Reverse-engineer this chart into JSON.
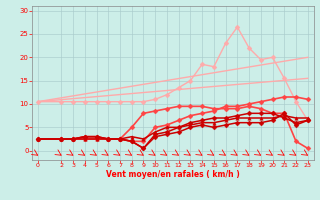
{
  "xlabel": "Vent moyen/en rafales ( km/h )",
  "background_color": "#cceee8",
  "grid_color": "#aacccc",
  "x_ticks": [
    0,
    2,
    3,
    4,
    5,
    6,
    7,
    8,
    9,
    10,
    11,
    12,
    13,
    14,
    15,
    16,
    17,
    18,
    19,
    20,
    21,
    22,
    23
  ],
  "xlim": [
    -0.5,
    23.5
  ],
  "ylim": [
    -2,
    31
  ],
  "y_ticks": [
    0,
    5,
    10,
    15,
    20,
    25,
    30
  ],
  "lines": [
    {
      "x": [
        0,
        23
      ],
      "y": [
        10.5,
        20.0
      ],
      "color": "#ffaaaa",
      "marker": null,
      "lw": 1.0
    },
    {
      "x": [
        0,
        23
      ],
      "y": [
        10.5,
        15.5
      ],
      "color": "#ffaaaa",
      "marker": null,
      "lw": 1.0
    },
    {
      "x": [
        0,
        2,
        3,
        4,
        5,
        6,
        7,
        8,
        9,
        10,
        11,
        12,
        13,
        14,
        15,
        16,
        17,
        18,
        19,
        20,
        21,
        22,
        23
      ],
      "y": [
        10.5,
        10.5,
        10.5,
        10.5,
        10.5,
        10.5,
        10.5,
        10.5,
        10.5,
        11,
        12,
        13.5,
        15,
        18.5,
        18,
        23,
        26.5,
        22,
        19.5,
        20,
        15.5,
        10.5,
        6.5
      ],
      "color": "#ffaaaa",
      "marker": "D",
      "lw": 1.0,
      "ms": 2.5
    },
    {
      "x": [
        0,
        2,
        3,
        4,
        5,
        6,
        7,
        8,
        9,
        10,
        11,
        12,
        13,
        14,
        15,
        16,
        17,
        18,
        19,
        20,
        21,
        22,
        23
      ],
      "y": [
        2.5,
        2.5,
        2.5,
        2.5,
        2.5,
        2.5,
        2.5,
        5,
        8,
        8.5,
        9,
        9.5,
        9.5,
        9.5,
        9,
        9,
        9,
        9.5,
        9,
        8,
        8,
        2,
        0.5
      ],
      "color": "#ff4444",
      "marker": "D",
      "lw": 1.2,
      "ms": 2.5
    },
    {
      "x": [
        0,
        2,
        3,
        4,
        5,
        6,
        7,
        8,
        9,
        10,
        11,
        12,
        13,
        14,
        15,
        16,
        17,
        18,
        19,
        20,
        21,
        22,
        23
      ],
      "y": [
        2.5,
        2.5,
        2.5,
        3,
        3,
        2.5,
        2.5,
        2,
        2,
        5,
        5.5,
        6.5,
        7.5,
        8,
        8.5,
        9.5,
        9.5,
        10,
        10.5,
        11,
        11.5,
        11.5,
        11
      ],
      "color": "#ff4444",
      "marker": "D",
      "lw": 1.2,
      "ms": 2.5
    },
    {
      "x": [
        0,
        2,
        3,
        4,
        5,
        6,
        7,
        8,
        9,
        10,
        11,
        12,
        13,
        14,
        15,
        16,
        17,
        18,
        19,
        20,
        21,
        22,
        23
      ],
      "y": [
        2.5,
        2.5,
        2.5,
        3,
        3,
        2.5,
        2.5,
        2,
        0.5,
        3.5,
        4,
        5,
        6,
        6.5,
        7,
        7,
        7.5,
        8,
        8,
        8,
        7,
        6,
        6.5
      ],
      "color": "#cc0000",
      "marker": "D",
      "lw": 1.1,
      "ms": 2.5
    },
    {
      "x": [
        0,
        2,
        3,
        4,
        5,
        6,
        7,
        8,
        9,
        10,
        11,
        12,
        13,
        14,
        15,
        16,
        17,
        18,
        19,
        20,
        21,
        22,
        23
      ],
      "y": [
        2.5,
        2.5,
        2.5,
        3,
        3,
        2.5,
        2.5,
        2,
        0.5,
        3,
        3.5,
        4,
        5,
        5.5,
        5,
        5.5,
        6,
        6,
        6,
        6.5,
        8,
        5.5,
        6.5
      ],
      "color": "#cc0000",
      "marker": "D",
      "lw": 1.1,
      "ms": 2.5
    },
    {
      "x": [
        0,
        2,
        3,
        4,
        5,
        6,
        7,
        8,
        9,
        10,
        11,
        12,
        13,
        14,
        15,
        16,
        17,
        18,
        19,
        20,
        21,
        22,
        23
      ],
      "y": [
        2.5,
        2.5,
        2.5,
        2.5,
        2.5,
        2.5,
        2.5,
        3,
        2.5,
        4,
        5,
        5,
        5.5,
        6,
        6,
        6.5,
        7,
        7,
        7,
        7,
        7.5,
        7,
        7
      ],
      "color": "#cc0000",
      "marker": "^",
      "lw": 1.1,
      "ms": 2.5
    }
  ]
}
